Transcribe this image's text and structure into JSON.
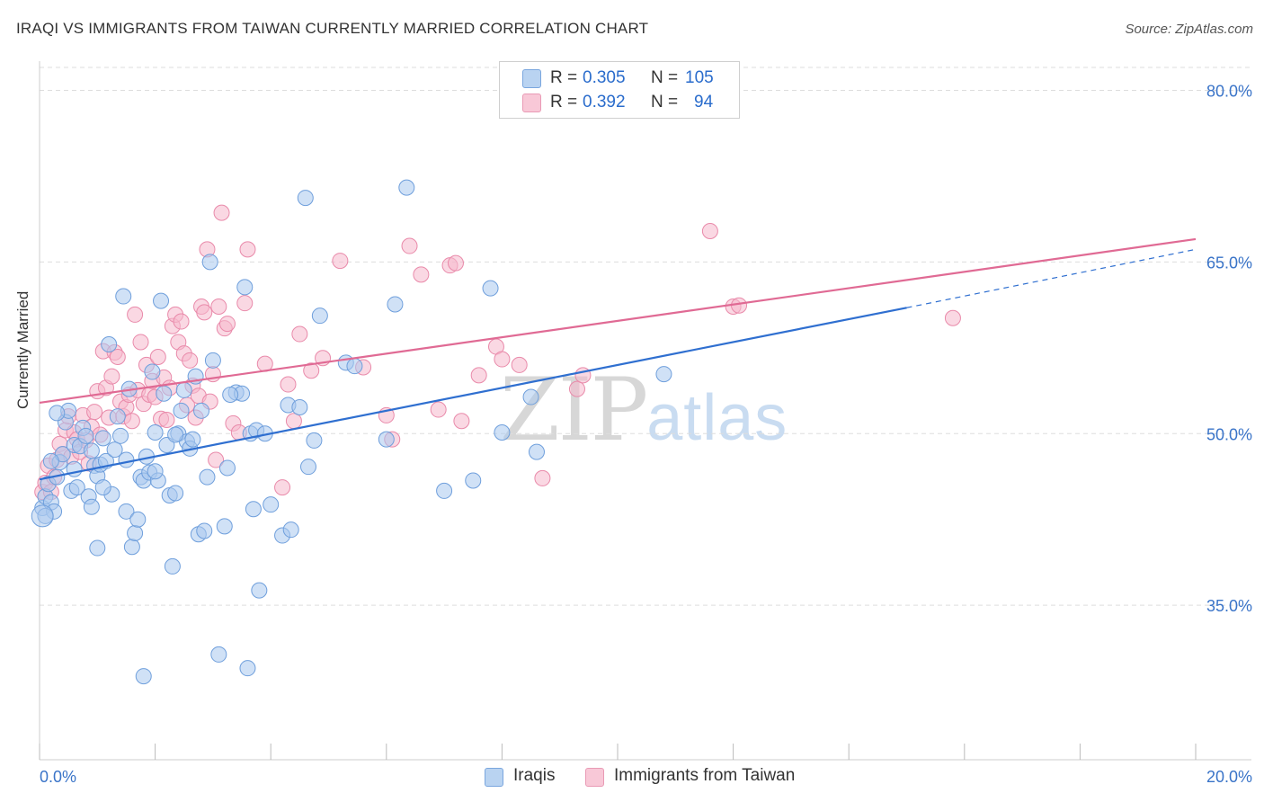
{
  "header": {
    "title": "IRAQI VS IMMIGRANTS FROM TAIWAN CURRENTLY MARRIED CORRELATION CHART",
    "source": "Source: ZipAtlas.com"
  },
  "watermark": {
    "zip": "ZIP",
    "atlas": "atlas"
  },
  "legend_top": {
    "rows": [
      {
        "r_label": "R =",
        "r_value": "0.305",
        "n_label": "N =",
        "n_value": "105"
      },
      {
        "r_label": "R =",
        "r_value": "0.392",
        "n_label": "N =",
        "n_value": "94"
      }
    ]
  },
  "legend_bottom": {
    "items": [
      {
        "label": "Iraqis"
      },
      {
        "label": "Immigrants from Taiwan"
      }
    ]
  },
  "colors": {
    "iraqis_fill": "#aac8ee",
    "iraqis_stroke": "#6f9fdc",
    "iraqis_line": "#2f6fd0",
    "taiwan_fill": "#f5b8cc",
    "taiwan_stroke": "#e98aaa",
    "taiwan_line": "#e06a94",
    "tick_label": "#3a74c8",
    "grid": "#dddddd"
  },
  "chart_data": {
    "type": "scatter",
    "title": "IRAQI VS IMMIGRANTS FROM TAIWAN CURRENTLY MARRIED CORRELATION CHART",
    "xlabel": "",
    "ylabel": "Currently Married",
    "xlim": [
      0,
      20
    ],
    "ylim": [
      21.5,
      82
    ],
    "x_tick_labels": [
      "0.0%",
      "20.0%"
    ],
    "y_ticks": [
      35,
      50,
      65,
      80
    ],
    "y_tick_labels": [
      "35.0%",
      "50.0%",
      "65.0%",
      "80.0%"
    ],
    "grid": true,
    "legend_position": "bottom",
    "series": [
      {
        "name": "Iraqis",
        "R": 0.305,
        "N": 105,
        "trend": {
          "x0": 0,
          "y0": 46.0,
          "x1": 15.0,
          "y1": 61.0,
          "dash_to_x": 20,
          "dash_to_y": 66.1
        },
        "points": [
          [
            0.05,
            43.5
          ],
          [
            0.1,
            44.5
          ],
          [
            0.15,
            45.6
          ],
          [
            0.2,
            44.0
          ],
          [
            0.25,
            43.2
          ],
          [
            0.3,
            46.2
          ],
          [
            0.35,
            47.5
          ],
          [
            0.4,
            48.2
          ],
          [
            0.45,
            51.0
          ],
          [
            0.5,
            52.0
          ],
          [
            0.55,
            45.0
          ],
          [
            0.6,
            49.0
          ],
          [
            0.65,
            45.3
          ],
          [
            0.7,
            48.9
          ],
          [
            0.75,
            50.5
          ],
          [
            0.8,
            49.8
          ],
          [
            0.85,
            44.5
          ],
          [
            0.9,
            43.6
          ],
          [
            0.95,
            47.2
          ],
          [
            1.0,
            46.3
          ],
          [
            1.0,
            40.0
          ],
          [
            1.05,
            47.3
          ],
          [
            1.1,
            49.6
          ],
          [
            1.15,
            47.6
          ],
          [
            1.2,
            57.8
          ],
          [
            1.25,
            44.7
          ],
          [
            1.3,
            48.6
          ],
          [
            1.35,
            51.5
          ],
          [
            1.4,
            49.8
          ],
          [
            1.45,
            62.0
          ],
          [
            1.5,
            43.2
          ],
          [
            1.55,
            53.9
          ],
          [
            1.6,
            40.1
          ],
          [
            1.65,
            41.3
          ],
          [
            1.7,
            42.5
          ],
          [
            1.75,
            46.2
          ],
          [
            1.8,
            45.9
          ],
          [
            1.85,
            48.0
          ],
          [
            1.9,
            46.6
          ],
          [
            1.95,
            55.4
          ],
          [
            2.0,
            50.1
          ],
          [
            2.05,
            45.9
          ],
          [
            2.1,
            61.6
          ],
          [
            2.15,
            53.5
          ],
          [
            2.2,
            49.0
          ],
          [
            2.25,
            44.6
          ],
          [
            2.3,
            38.4
          ],
          [
            2.35,
            44.8
          ],
          [
            2.4,
            50.0
          ],
          [
            2.45,
            52.0
          ],
          [
            2.5,
            53.8
          ],
          [
            2.55,
            49.3
          ],
          [
            2.6,
            48.7
          ],
          [
            2.65,
            49.5
          ],
          [
            2.7,
            55.0
          ],
          [
            2.75,
            41.2
          ],
          [
            2.8,
            52.0
          ],
          [
            2.85,
            41.5
          ],
          [
            2.9,
            46.2
          ],
          [
            2.95,
            65.0
          ],
          [
            3.0,
            56.4
          ],
          [
            3.1,
            30.7
          ],
          [
            3.2,
            41.9
          ],
          [
            3.25,
            47.0
          ],
          [
            3.4,
            53.6
          ],
          [
            3.5,
            53.5
          ],
          [
            3.55,
            62.8
          ],
          [
            3.6,
            29.5
          ],
          [
            3.65,
            50.0
          ],
          [
            3.7,
            43.4
          ],
          [
            3.75,
            50.3
          ],
          [
            3.8,
            36.3
          ],
          [
            3.9,
            50.0
          ],
          [
            4.0,
            43.8
          ],
          [
            4.2,
            41.1
          ],
          [
            4.3,
            52.5
          ],
          [
            4.35,
            41.6
          ],
          [
            4.5,
            52.3
          ],
          [
            4.6,
            70.6
          ],
          [
            4.65,
            47.1
          ],
          [
            4.75,
            49.4
          ],
          [
            4.85,
            60.3
          ],
          [
            5.3,
            56.2
          ],
          [
            5.45,
            55.9
          ],
          [
            6.0,
            49.5
          ],
          [
            6.15,
            61.3
          ],
          [
            6.35,
            71.5
          ],
          [
            7.0,
            45.0
          ],
          [
            7.5,
            45.9
          ],
          [
            7.8,
            62.7
          ],
          [
            8.0,
            50.1
          ],
          [
            8.5,
            53.2
          ],
          [
            8.6,
            48.4
          ],
          [
            10.8,
            55.2
          ],
          [
            0.1,
            42.8
          ],
          [
            1.8,
            28.8
          ],
          [
            2.0,
            46.7
          ],
          [
            0.6,
            46.9
          ],
          [
            0.3,
            51.8
          ],
          [
            1.1,
            45.3
          ],
          [
            2.35,
            49.9
          ],
          [
            3.3,
            53.4
          ],
          [
            0.9,
            48.5
          ],
          [
            1.5,
            47.7
          ],
          [
            0.2,
            47.6
          ]
        ]
      },
      {
        "name": "Immigrants from Taiwan",
        "R": 0.392,
        "N": 94,
        "trend": {
          "x0": 0,
          "y0": 52.7,
          "x1": 20,
          "y1": 67.0
        },
        "points": [
          [
            0.05,
            44.9
          ],
          [
            0.1,
            45.7
          ],
          [
            0.15,
            47.2
          ],
          [
            0.2,
            44.9
          ],
          [
            0.25,
            46.2
          ],
          [
            0.3,
            47.7
          ],
          [
            0.35,
            49.1
          ],
          [
            0.4,
            48.2
          ],
          [
            0.45,
            50.3
          ],
          [
            0.5,
            51.5
          ],
          [
            0.55,
            48.0
          ],
          [
            0.6,
            50.1
          ],
          [
            0.65,
            49.5
          ],
          [
            0.7,
            48.4
          ],
          [
            0.75,
            51.6
          ],
          [
            0.8,
            49.4
          ],
          [
            0.85,
            47.4
          ],
          [
            0.9,
            50.6
          ],
          [
            0.95,
            51.9
          ],
          [
            1.0,
            53.7
          ],
          [
            1.05,
            49.9
          ],
          [
            1.1,
            57.2
          ],
          [
            1.15,
            54.0
          ],
          [
            1.2,
            51.4
          ],
          [
            1.25,
            55.0
          ],
          [
            1.3,
            57.1
          ],
          [
            1.35,
            56.7
          ],
          [
            1.4,
            52.8
          ],
          [
            1.45,
            51.5
          ],
          [
            1.5,
            52.3
          ],
          [
            1.55,
            53.4
          ],
          [
            1.6,
            51.1
          ],
          [
            1.65,
            60.4
          ],
          [
            1.7,
            53.8
          ],
          [
            1.75,
            58.0
          ],
          [
            1.8,
            52.6
          ],
          [
            1.85,
            56.0
          ],
          [
            1.9,
            53.4
          ],
          [
            1.95,
            54.6
          ],
          [
            2.0,
            53.2
          ],
          [
            2.05,
            56.7
          ],
          [
            2.1,
            51.3
          ],
          [
            2.15,
            54.9
          ],
          [
            2.2,
            51.2
          ],
          [
            2.25,
            54.0
          ],
          [
            2.3,
            59.4
          ],
          [
            2.35,
            60.4
          ],
          [
            2.4,
            58.0
          ],
          [
            2.45,
            59.8
          ],
          [
            2.5,
            57.0
          ],
          [
            2.55,
            52.5
          ],
          [
            2.6,
            56.4
          ],
          [
            2.65,
            54.2
          ],
          [
            2.7,
            51.4
          ],
          [
            2.75,
            53.3
          ],
          [
            2.8,
            61.1
          ],
          [
            2.85,
            60.6
          ],
          [
            2.9,
            66.1
          ],
          [
            2.95,
            52.8
          ],
          [
            3.0,
            55.2
          ],
          [
            3.05,
            47.7
          ],
          [
            3.1,
            61.1
          ],
          [
            3.15,
            69.3
          ],
          [
            3.2,
            59.2
          ],
          [
            3.25,
            59.6
          ],
          [
            3.35,
            50.9
          ],
          [
            3.45,
            50.1
          ],
          [
            3.55,
            61.4
          ],
          [
            3.6,
            66.1
          ],
          [
            3.9,
            56.1
          ],
          [
            4.2,
            45.3
          ],
          [
            4.3,
            54.3
          ],
          [
            4.4,
            51.1
          ],
          [
            4.5,
            58.7
          ],
          [
            4.7,
            55.5
          ],
          [
            4.9,
            56.6
          ],
          [
            5.2,
            65.1
          ],
          [
            5.6,
            55.8
          ],
          [
            6.0,
            51.6
          ],
          [
            6.1,
            49.5
          ],
          [
            6.4,
            66.4
          ],
          [
            6.6,
            63.9
          ],
          [
            6.9,
            52.1
          ],
          [
            7.1,
            64.7
          ],
          [
            7.2,
            64.9
          ],
          [
            7.3,
            51.1
          ],
          [
            7.6,
            55.1
          ],
          [
            7.9,
            57.6
          ],
          [
            8.0,
            56.5
          ],
          [
            8.3,
            56.0
          ],
          [
            8.7,
            46.1
          ],
          [
            9.3,
            53.9
          ],
          [
            9.4,
            55.1
          ],
          [
            11.6,
            67.7
          ]
        ],
        "extra_points": [
          [
            12.0,
            61.1
          ],
          [
            12.1,
            61.2
          ],
          [
            15.8,
            60.1
          ]
        ]
      }
    ]
  }
}
